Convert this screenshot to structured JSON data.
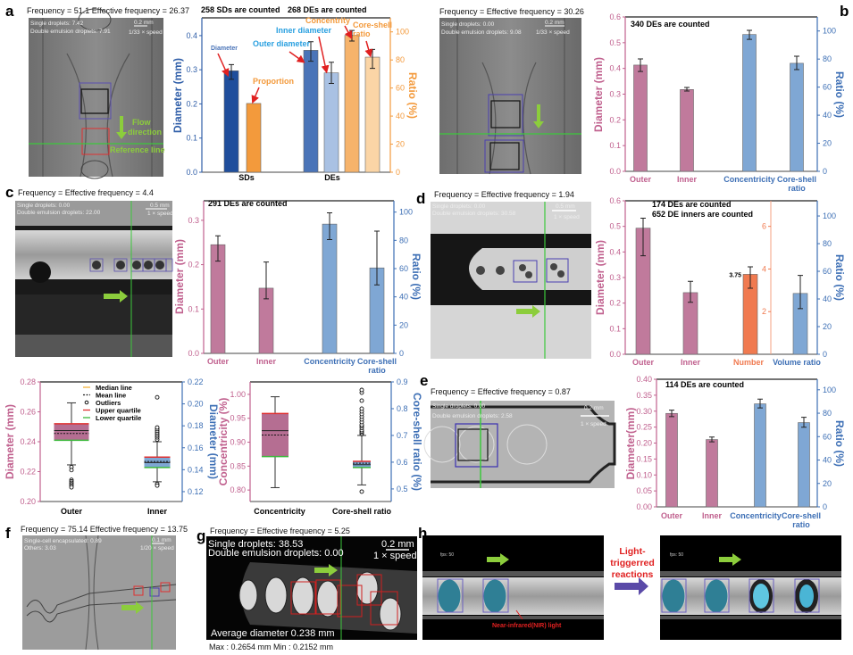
{
  "panels": {
    "a": {
      "label": "a",
      "title": "Frequency = 51.1  Effective frequency = 26.37",
      "overlay": [
        "Single droplets: 7.42",
        "Double emulsion droplets: 7.91"
      ],
      "scale": "0.2 mm",
      "speed": "1/33 × speed",
      "flow": [
        "Flow",
        "direction"
      ],
      "ref": "Reference line"
    },
    "b": {
      "label": "b",
      "title": "Frequency = Effective frequency = 30.26",
      "overlay": [
        "Single droplets: 0.00",
        "Double emulsion droplets: 9.08"
      ],
      "scale": "0.2 mm",
      "speed": "1/33 × speed"
    },
    "c": {
      "label": "c",
      "title": "Frequency = Effective frequency = 4.4",
      "overlay": [
        "Single droplets: 0.00",
        "Double emulsion droplets: 22.00"
      ],
      "scale": "0.5 mm",
      "speed": "1 × speed"
    },
    "d": {
      "label": "d",
      "title": "Frequency = Effective frequency = 1.94",
      "overlay": [
        "Single droplets: 0.00",
        "Double emulsion droplets: 30.58"
      ],
      "scale": "0.5 mm",
      "speed": "1 × speed"
    },
    "e": {
      "label": "e",
      "title": "Frequency = Effective frequency = 0.87",
      "overlay": [
        "Single droplets: 0.00",
        "Double emulsion droplets: 2.58"
      ],
      "scale": "0.2 mm",
      "speed": "1 × speed"
    },
    "f": {
      "label": "f",
      "title": "Frequency = 75.14  Effective frequency = 13.75",
      "overlay": [
        "Single-cell encapsulated: 0.89",
        "Others: 3.03"
      ],
      "scale": "0.1 mm",
      "speed": "1/20 × speed"
    },
    "g": {
      "label": "g",
      "title": "Frequency = Effective frequency = 5.25",
      "overlay": [
        "Single droplets: 38.53",
        "Double emulsion droplets: 0.00"
      ],
      "scale": "0.2 mm",
      "speed": "1 × speed",
      "average": "Average diameter 0.238 mm",
      "maxmin": "Max : 0.2654 mm   Min : 0.2152 mm"
    },
    "h": {
      "label": "h",
      "fps": "fps: 50",
      "nir": "Near-infrared(NIR) light",
      "reaction": [
        "Light-",
        "triggerred",
        "reactions"
      ]
    }
  },
  "colors": {
    "pink": "#c07a9c",
    "blue": "#7fa7d4",
    "pink_axis": "#c0608e",
    "blue_axis": "#3d6fb5",
    "orange": "#f39a3c",
    "green": "#3cc83c",
    "red": "#e02020"
  },
  "chart_data": [
    {
      "id": "a",
      "type": "bar",
      "titles": [
        "258 SDs are counted",
        "268 DEs are counted"
      ],
      "ylabel": "Diameter (mm)",
      "y2label": "Ratio (%)",
      "ylim": [
        0,
        0.452
      ],
      "y2lim": [
        0,
        110
      ],
      "yticks": [
        "0.0",
        "0.1",
        "0.2",
        "0.3",
        "0.4"
      ],
      "y2ticks": [
        "0",
        "20",
        "40",
        "60",
        "80",
        "100"
      ],
      "categories": [
        "SDs",
        "DEs"
      ],
      "ycolor": "#2f5ea8",
      "y2color": "#f39a3c",
      "bars": [
        {
          "name": "Diameter",
          "axis": "left",
          "value": 0.297,
          "err": [
            0.272,
            0.315
          ],
          "color": "#1f4e9c"
        },
        {
          "name": "Proportion",
          "axis": "right",
          "value": 49,
          "color": "#f39a3c"
        },
        {
          "name": "Outer diameter",
          "axis": "left",
          "value": 0.357,
          "err": [
            0.325,
            0.382
          ],
          "color": "#4a74b8"
        },
        {
          "name": "Inner diameter",
          "axis": "left",
          "value": 0.291,
          "err": [
            0.26,
            0.322
          ],
          "color": "#a9c1e3"
        },
        {
          "name": "Concentrity",
          "axis": "right",
          "value": 97.5,
          "err": [
            93.5,
            101
          ],
          "color": "#f6b36b"
        },
        {
          "name": "Core-shell ratio",
          "axis": "right",
          "value": 82,
          "err": [
            74,
            87.5
          ],
          "color": "#fbd5a6"
        }
      ]
    },
    {
      "id": "b",
      "type": "bar",
      "titles": [
        "340 DEs are counted"
      ],
      "ylabel": "Diameter (mm)",
      "y2label": "Ratio (%)",
      "ylim": [
        0,
        0.6
      ],
      "y2lim": [
        0,
        110
      ],
      "yticks": [
        "0.0",
        "0.1",
        "0.2",
        "0.3",
        "0.4",
        "0.5",
        "0.6"
      ],
      "y2ticks": [
        "0",
        "20",
        "40",
        "60",
        "80",
        "100"
      ],
      "ycolor": "#c0608e",
      "y2color": "#3d6fb5",
      "bars": [
        {
          "name": "Outer",
          "axis": "left",
          "value": 0.413,
          "err": [
            0.388,
            0.437
          ],
          "color": "#c07a9c"
        },
        {
          "name": "Inner",
          "axis": "left",
          "value": 0.318,
          "err": [
            0.312,
            0.326
          ],
          "color": "#c07a9c"
        },
        {
          "name": "Concentricity",
          "axis": "right",
          "value": 97.5,
          "err": [
            94,
            100.5
          ],
          "color": "#7fa7d4"
        },
        {
          "name": "Core-shell ratio",
          "axis": "right",
          "value": 77,
          "err": [
            72.5,
            82
          ],
          "color": "#7fa7d4"
        }
      ]
    },
    {
      "id": "c",
      "type": "bar",
      "titles": [
        "291 DEs are counted"
      ],
      "ylabel": "Diameter (mm)",
      "y2label": "Ratio (%)",
      "ylim": [
        0,
        0.344
      ],
      "y2lim": [
        0,
        108
      ],
      "yticks": [
        "0.0",
        "0.1",
        "0.2",
        "0.3"
      ],
      "y2ticks": [
        "0",
        "20",
        "40",
        "60",
        "80",
        "100"
      ],
      "ycolor": "#c0608e",
      "y2color": "#3d6fb5",
      "bars": [
        {
          "name": "Outer",
          "axis": "left",
          "value": 0.245,
          "err": [
            0.208,
            0.265
          ],
          "color": "#c07a9c"
        },
        {
          "name": "Inner",
          "axis": "left",
          "value": 0.147,
          "err": [
            0.123,
            0.206
          ],
          "color": "#c07a9c"
        },
        {
          "name": "Concentricity",
          "axis": "right",
          "value": 91.5,
          "err": [
            80.5,
            99.5
          ],
          "color": "#7fa7d4"
        },
        {
          "name": "Core-shell ratio",
          "axis": "right",
          "value": 60.5,
          "err": [
            48.5,
            86.5
          ],
          "color": "#7fa7d4"
        }
      ]
    },
    {
      "id": "d",
      "type": "bar",
      "titles": [
        "174 DEs are counted",
        "652 DE inners are counted"
      ],
      "ylabel": "Diameter (mm)",
      "y2label": "Ratio (%)",
      "ylim": [
        0,
        0.6
      ],
      "y2lim": [
        0,
        111
      ],
      "y3lim": [
        0,
        7.2
      ],
      "yticks": [
        "0.0",
        "0.1",
        "0.2",
        "0.3",
        "0.4",
        "0.5",
        "0.6"
      ],
      "y2ticks": [
        "0",
        "20",
        "40",
        "60",
        "80",
        "100"
      ],
      "y3ticks": [
        "2",
        "4",
        "6"
      ],
      "ycolor": "#c0608e",
      "y2color": "#3d6fb5",
      "y3color": "#f07a50",
      "bars": [
        {
          "name": "Outer",
          "axis": "left",
          "value": 0.493,
          "err": [
            0.385,
            0.532
          ],
          "color": "#c07a9c"
        },
        {
          "name": "Inner",
          "axis": "left",
          "value": 0.241,
          "err": [
            0.203,
            0.285
          ],
          "color": "#c07a9c"
        },
        {
          "name": "Number",
          "axis": "mid",
          "value": 3.75,
          "err": [
            3.1,
            4.1
          ],
          "color": "#f07a50",
          "label": "3.75"
        },
        {
          "name": "Volume ratio",
          "axis": "right",
          "value": 44,
          "err": [
            33,
            57
          ],
          "color": "#7fa7d4"
        }
      ]
    },
    {
      "id": "e",
      "type": "bar",
      "titles": [
        "114 DEs are counted"
      ],
      "ylabel": "Diameter(mm)",
      "y2label": "Ratio (%)",
      "ylim": [
        0,
        0.4
      ],
      "y2lim": [
        0,
        109
      ],
      "yticks": [
        "0.00",
        "0.05",
        "0.10",
        "0.15",
        "0.20",
        "0.25",
        "0.30",
        "0.35",
        "0.40"
      ],
      "y2ticks": [
        "0",
        "20",
        "40",
        "60",
        "80",
        "100"
      ],
      "ycolor": "#c0608e",
      "y2color": "#3d6fb5",
      "bars": [
        {
          "name": "Outer",
          "axis": "left",
          "value": 0.293,
          "err": [
            0.283,
            0.303
          ],
          "color": "#c07a9c"
        },
        {
          "name": "Inner",
          "axis": "left",
          "value": 0.211,
          "err": [
            0.204,
            0.219
          ],
          "color": "#c07a9c"
        },
        {
          "name": "Concentricity",
          "axis": "right",
          "value": 88,
          "err": [
            84.5,
            92
          ],
          "color": "#7fa7d4"
        },
        {
          "name": "Core-shell ratio",
          "axis": "right",
          "value": 72,
          "err": [
            68,
            76.5
          ],
          "color": "#7fa7d4"
        }
      ]
    },
    {
      "id": "box1",
      "type": "box",
      "ylabel": "Diameter (mm)",
      "y2label": "Diameter (mm)",
      "ylim": [
        0.2,
        0.28
      ],
      "y2lim": [
        0.111,
        0.22
      ],
      "yticks": [
        "0.20",
        "0.22",
        "0.24",
        "0.26",
        "0.28"
      ],
      "y2ticks": [
        "0.12",
        "0.14",
        "0.16",
        "0.18",
        "0.20",
        "0.22"
      ],
      "ycolor": "#c0608e",
      "y2color": "#3d6fb5",
      "legend": [
        "Median line",
        "Mean line",
        "Outliers",
        "Upper quartile",
        "Lower quartile"
      ],
      "boxes": [
        {
          "name": "Outer",
          "axis": "left",
          "q1": 0.241,
          "median": 0.2475,
          "mean": 0.2455,
          "q3": 0.252,
          "whisker": [
            0.2245,
            0.266
          ],
          "outliers": [
            0.223,
            0.221,
            0.2145,
            0.2135,
            0.2125,
            0.2115,
            0.2105,
            0.2095
          ],
          "color": "#b56e92"
        },
        {
          "name": "Inner",
          "axis": "right",
          "q1": 0.142,
          "median": 0.1465,
          "mean": 0.1475,
          "q3": 0.1515,
          "whisker": [
            0.129,
            0.1655
          ],
          "outliers": [
            0.1675,
            0.1695,
            0.171,
            0.1725,
            0.174,
            0.1755,
            0.177,
            0.1785,
            0.127,
            0.1255,
            0.206
          ],
          "color": "#7fa7d4"
        }
      ]
    },
    {
      "id": "box2",
      "type": "box",
      "ylabel": "Concentricity (%)",
      "y2label": "Core-shell ratio (%)",
      "ylim": [
        0.776,
        1.026
      ],
      "y2lim": [
        0.453,
        0.9
      ],
      "yticks": [
        "0.80",
        "0.85",
        "0.90",
        "0.95",
        "1.00"
      ],
      "y2ticks": [
        "0.5",
        "0.6",
        "0.7",
        "0.8",
        "0.9"
      ],
      "ycolor": "#c0608e",
      "y2color": "#3d6fb5",
      "boxes": [
        {
          "name": "Concentricity",
          "axis": "left",
          "q1": 0.87,
          "median": 0.924,
          "mean": 0.915,
          "q3": 0.96,
          "whisker": [
            0.805,
            0.995
          ],
          "outliers": [],
          "color": "#b56e92"
        },
        {
          "name": "Core-shell ratio",
          "axis": "right",
          "q1": 0.58,
          "median": 0.5905,
          "mean": 0.596,
          "q3": 0.603,
          "whisker": [
            0.515,
            0.7
          ],
          "outliers": [
            0.705,
            0.71,
            0.715,
            0.72,
            0.728,
            0.735,
            0.74,
            0.75,
            0.76,
            0.77,
            0.78,
            0.79,
            0.8,
            0.83,
            0.86,
            0.87,
            0.49
          ],
          "color": "#7fa7d4"
        }
      ]
    }
  ]
}
